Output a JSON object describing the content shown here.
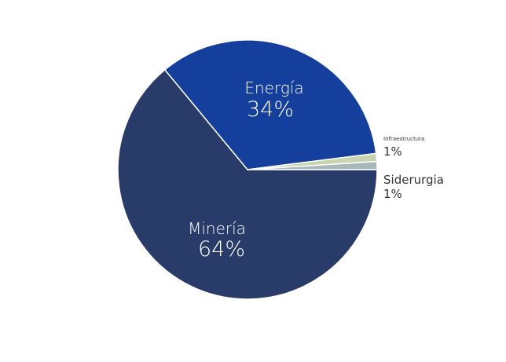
{
  "chart_data": {
    "type": "pie",
    "title": "",
    "slices": [
      {
        "name": "Minería",
        "value": 64,
        "label": "64%",
        "color": "#283b69"
      },
      {
        "name": "Energía",
        "value": 34,
        "label": "34%",
        "color": "#143f9c"
      },
      {
        "name": "Infraestructura",
        "value": 1,
        "label": "1%",
        "color": "#c8d4ae"
      },
      {
        "name": "Siderurgia",
        "value": 1,
        "label": "1%",
        "color": "#a6b8b9"
      }
    ]
  }
}
